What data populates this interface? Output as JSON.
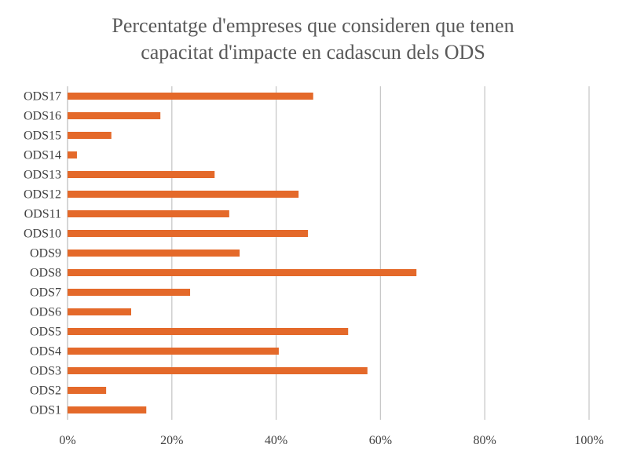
{
  "chart_data": {
    "type": "bar",
    "orientation": "horizontal",
    "title_lines": [
      "Percentatge d'empreses que consideren que tenen",
      "capacitat d'impacte en cadascun dels ODS"
    ],
    "categories": [
      "ODS1",
      "ODS2",
      "ODS3",
      "ODS4",
      "ODS5",
      "ODS6",
      "ODS7",
      "ODS8",
      "ODS9",
      "ODS10",
      "ODS11",
      "ODS12",
      "ODS13",
      "ODS14",
      "ODS15",
      "ODS16",
      "ODS17"
    ],
    "values": [
      15.1,
      7.4,
      57.5,
      40.5,
      53.8,
      12.2,
      23.5,
      66.9,
      33.0,
      46.1,
      31.0,
      44.3,
      28.2,
      1.8,
      8.4,
      17.8,
      47.1
    ],
    "xlim": [
      0,
      100
    ],
    "xticks": [
      0,
      20,
      40,
      60,
      80,
      100
    ],
    "xtick_labels": [
      "0%",
      "20%",
      "40%",
      "60%",
      "80%",
      "100%"
    ],
    "grid": true,
    "legend": "none",
    "bar_color": "#E4692A",
    "grid_color": "#C8C8C8"
  }
}
